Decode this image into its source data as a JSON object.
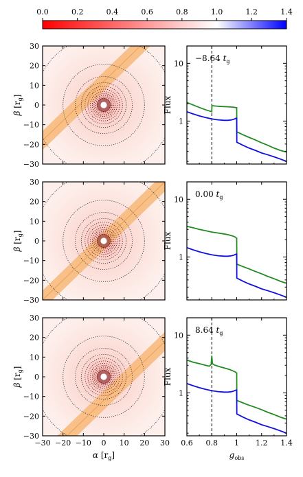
{
  "chart_data": {
    "type": "multi-panel",
    "colorbar": {
      "colormap": "bwr",
      "range": [
        0.0,
        1.4
      ],
      "tick_labels": [
        "0.0",
        "0.2",
        "0.4",
        "0.6",
        "0.8",
        "1.0",
        "1.2",
        "1.4"
      ]
    },
    "image_panels": {
      "type": "heatmap",
      "xlabel_symbol": "α",
      "ylabel_symbol": "β",
      "unit": "[r",
      "unit_sub": "g",
      "unit_close": "]",
      "xlim": [
        -30,
        30
      ],
      "ylim": [
        -30,
        30
      ],
      "ticks": [
        -30,
        -20,
        -10,
        0,
        10,
        20,
        30
      ],
      "tick_labels": [
        "−30",
        "−20",
        "−10",
        "0",
        "10",
        "20",
        "30"
      ],
      "contour_levels_note": "",
      "orange_band_slope": 1,
      "orange_band_intercepts": [
        12,
        0,
        -12
      ]
    },
    "spectrum_panels": {
      "type": "line",
      "xlabel_symbol": "g",
      "xlabel_sub": "obs",
      "ylabel": "Flux",
      "xlim": [
        0.6,
        1.4
      ],
      "ylim": [
        0.18,
        20
      ],
      "log_y": true,
      "x_ticks": [
        0.6,
        0.8,
        1.0,
        1.2,
        1.4
      ],
      "x_tick_labels": [
        "0.6",
        "0.8",
        "1",
        "1.2",
        "1.4"
      ],
      "y_ticks": [
        1,
        10
      ],
      "y_tick_labels": [
        "1",
        "10"
      ]
    },
    "panels": [
      {
        "time_label": "−8.64",
        "time_unit": "t",
        "time_unit_sub": "g",
        "dashed_x": 0.8,
        "series": [
          {
            "color": "#228b22",
            "x": [
              0.6,
              0.65,
              0.7,
              0.75,
              0.8,
              0.801,
              0.83,
              0.86,
              0.9,
              0.94,
              0.97,
              0.99,
              0.999,
              1.0,
              1.001,
              1.05,
              1.1,
              1.15,
              1.2,
              1.25,
              1.3,
              1.35,
              1.4
            ],
            "y": [
              2.1,
              1.9,
              1.72,
              1.57,
              1.45,
              1.85,
              1.82,
              1.8,
              1.78,
              1.76,
              1.74,
              1.72,
              1.7,
              1.7,
              0.65,
              0.58,
              0.52,
              0.47,
              0.42,
              0.38,
              0.34,
              0.31,
              0.29
            ]
          },
          {
            "color": "#1010e0",
            "x": [
              0.6,
              0.65,
              0.7,
              0.75,
              0.8,
              0.85,
              0.9,
              0.93,
              0.96,
              0.98,
              0.995,
              1.0,
              1.001,
              1.05,
              1.1,
              1.15,
              1.2,
              1.25,
              1.3,
              1.35,
              1.4
            ],
            "y": [
              1.45,
              1.33,
              1.23,
              1.15,
              1.09,
              1.05,
              1.03,
              1.03,
              1.05,
              1.08,
              1.12,
              1.12,
              0.43,
              0.38,
              0.34,
              0.31,
              0.28,
              0.26,
              0.24,
              0.22,
              0.2
            ]
          }
        ]
      },
      {
        "time_label": "0.00",
        "time_unit": "t",
        "time_unit_sub": "g",
        "dashed_x": null,
        "series": [
          {
            "color": "#228b22",
            "x": [
              0.6,
              0.65,
              0.7,
              0.75,
              0.8,
              0.85,
              0.9,
              0.94,
              0.97,
              0.99,
              0.999,
              1.0,
              1.001,
              1.05,
              1.1,
              1.15,
              1.2,
              1.25,
              1.3,
              1.35,
              1.4
            ],
            "y": [
              3.4,
              3.2,
              3.0,
              2.85,
              2.7,
              2.6,
              2.5,
              2.4,
              2.3,
              2.2,
              2.1,
              2.1,
              0.75,
              0.68,
              0.62,
              0.56,
              0.51,
              0.46,
              0.42,
              0.38,
              0.35
            ]
          },
          {
            "color": "#1010e0",
            "x": [
              0.6,
              0.65,
              0.7,
              0.75,
              0.8,
              0.85,
              0.9,
              0.93,
              0.96,
              0.98,
              0.995,
              1.0,
              1.001,
              1.05,
              1.1,
              1.15,
              1.2,
              1.25,
              1.3,
              1.35,
              1.4
            ],
            "y": [
              1.45,
              1.33,
              1.23,
              1.15,
              1.09,
              1.05,
              1.03,
              1.03,
              1.05,
              1.08,
              1.12,
              1.12,
              0.43,
              0.38,
              0.34,
              0.31,
              0.28,
              0.26,
              0.24,
              0.22,
              0.2
            ]
          }
        ]
      },
      {
        "time_label": "8.64",
        "time_unit": "t",
        "time_unit_sub": "g",
        "dashed_x": 0.8,
        "series": [
          {
            "color": "#228b22",
            "x": [
              0.6,
              0.65,
              0.7,
              0.75,
              0.78,
              0.795,
              0.8,
              0.805,
              0.82,
              0.86,
              0.9,
              0.94,
              0.97,
              0.99,
              0.999,
              1.0,
              1.001,
              1.05,
              1.1,
              1.15,
              1.2,
              1.25,
              1.3,
              1.35,
              1.4
            ],
            "y": [
              3.7,
              3.4,
              3.2,
              3.0,
              2.9,
              3.1,
              4.4,
              3.2,
              3.05,
              2.85,
              2.7,
              2.55,
              2.4,
              2.3,
              2.2,
              2.2,
              0.74,
              0.67,
              0.61,
              0.56,
              0.51,
              0.46,
              0.42,
              0.38,
              0.35
            ]
          },
          {
            "color": "#1010e0",
            "x": [
              0.6,
              0.65,
              0.7,
              0.75,
              0.8,
              0.85,
              0.9,
              0.93,
              0.96,
              0.98,
              0.995,
              1.0,
              1.001,
              1.05,
              1.1,
              1.15,
              1.2,
              1.25,
              1.3,
              1.35,
              1.4
            ],
            "y": [
              1.45,
              1.33,
              1.23,
              1.15,
              1.09,
              1.05,
              1.03,
              1.03,
              1.05,
              1.08,
              1.12,
              1.12,
              0.43,
              0.38,
              0.34,
              0.31,
              0.28,
              0.26,
              0.24,
              0.22,
              0.2
            ]
          }
        ]
      }
    ]
  }
}
